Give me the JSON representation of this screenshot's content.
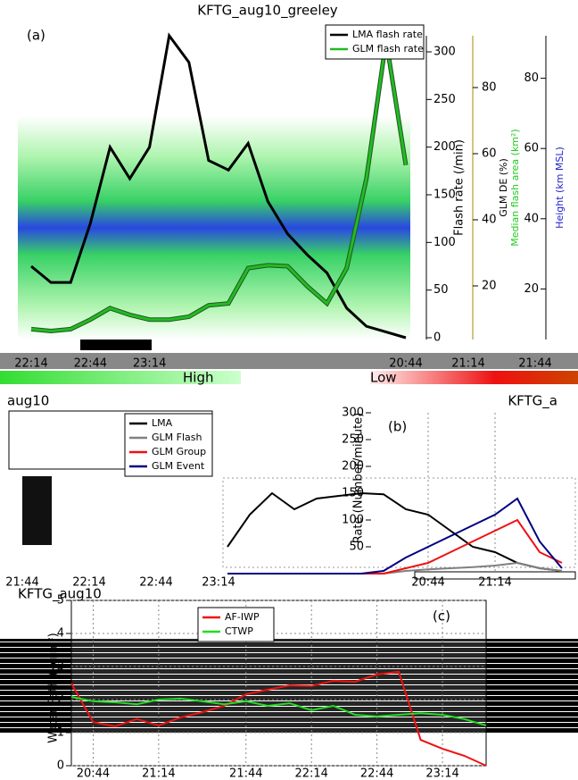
{
  "chart_data": [
    {
      "type": "line",
      "title": "KFTG_aug10_greeley",
      "panel_label": "(a)",
      "categories": [
        "22:14",
        null,
        null,
        "22:44",
        null,
        null,
        "23:14",
        null,
        null,
        null,
        null,
        null,
        null,
        null,
        null,
        null,
        null,
        null,
        null,
        null
      ],
      "series": [
        {
          "name": "LMA flash rate",
          "color": "#000000",
          "values": [
            75,
            58,
            58,
            120,
            200,
            167,
            200,
            317,
            289,
            186,
            176,
            204,
            143,
            109,
            87,
            68,
            31,
            12,
            6,
            0
          ]
        },
        {
          "name": "GLM flash rate",
          "color": "#22bb22",
          "values": [
            9,
            7,
            9,
            19,
            31,
            24,
            19,
            19,
            22,
            34,
            36,
            73,
            76,
            75,
            54,
            36,
            73,
            167,
            312,
            181
          ]
        }
      ],
      "ylabel": "Flash rate (/min)",
      "ylim": [
        0,
        300
      ],
      "yticks": [
        0,
        50,
        100,
        150,
        200,
        250,
        300
      ],
      "y2label": "GLM DE (%)",
      "y2lim": [
        0,
        100
      ],
      "y2ticks": [
        20,
        40,
        60,
        80
      ],
      "y3label": "Median flash area (km²)",
      "y4label": "Height (km MSL)",
      "y4lim": [
        0,
        100
      ],
      "y4ticks": [
        20,
        40,
        60,
        80
      ],
      "colorbar_labels": [
        "High",
        "Low"
      ],
      "extra_xticks": [
        "20:44",
        "21:14",
        "21:44"
      ]
    },
    {
      "type": "line",
      "title": "KFTG_a",
      "subtitle": "aug10",
      "panel_label": "(b)",
      "categories": [
        null,
        null,
        null,
        null,
        null,
        null,
        null,
        null,
        null,
        "20:44",
        null,
        null,
        "21:14",
        null,
        null,
        null
      ],
      "series": [
        {
          "name": "LMA",
          "color": "#000000",
          "values": [
            50,
            110,
            150,
            120,
            140,
            145,
            150,
            148,
            120,
            110,
            80,
            50,
            40,
            20,
            10,
            5
          ]
        },
        {
          "name": "GLM Flash",
          "color": "#808080",
          "values": [
            0,
            0,
            0,
            0,
            0,
            0,
            0,
            0,
            5,
            8,
            10,
            12,
            15,
            20,
            10,
            5
          ]
        },
        {
          "name": "GLM Group",
          "color": "#ee1111",
          "values": [
            0,
            0,
            0,
            0,
            0,
            0,
            0,
            0,
            10,
            20,
            40,
            60,
            80,
            100,
            40,
            20
          ]
        },
        {
          "name": "GLM Event",
          "color": "#000080",
          "values": [
            0,
            0,
            0,
            0,
            0,
            0,
            0,
            5,
            30,
            50,
            70,
            90,
            110,
            140,
            60,
            10
          ]
        }
      ],
      "ylabel": "Rate (Number/minute)",
      "ylim": [
        0,
        300
      ],
      "yticks": [
        50,
        100,
        150,
        200,
        250,
        300
      ],
      "extra_xticks": [
        "21:44",
        "22:14",
        "22:44",
        "23:14"
      ]
    },
    {
      "type": "line",
      "title": "KFTG_aug10",
      "panel_label": "(c)",
      "categories": [
        null,
        "20:44",
        null,
        null,
        "21:14",
        null,
        null,
        null,
        "21:44",
        null,
        null,
        "22:14",
        null,
        null,
        "22:44",
        null,
        null,
        "23:14",
        null,
        null
      ],
      "series": [
        {
          "name": "AF-IWP",
          "color": "#ee1111",
          "values": [
            2.49,
            1.32,
            1.19,
            1.41,
            1.22,
            1.46,
            1.62,
            1.81,
            2.16,
            2.3,
            2.43,
            2.41,
            2.57,
            2.54,
            2.76,
            2.84,
            0.78,
            0.51,
            0.3,
            0
          ]
        },
        {
          "name": "CTWP",
          "color": "#22dd22",
          "values": [
            2.08,
            1.95,
            1.92,
            1.86,
            2.0,
            2.03,
            1.95,
            1.86,
            1.95,
            1.81,
            1.89,
            1.68,
            1.81,
            1.54,
            1.49,
            1.54,
            1.59,
            1.54,
            1.41,
            1.22
          ]
        }
      ],
      "ylabel": "Water Path (kg/m²)",
      "ylim": [
        0,
        5
      ],
      "yticks": [
        0,
        1,
        2,
        3,
        4,
        5
      ],
      "grid": true
    }
  ]
}
